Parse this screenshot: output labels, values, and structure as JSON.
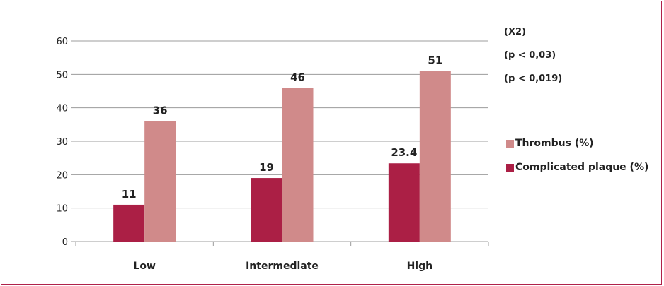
{
  "chart_data": {
    "type": "bar",
    "categories": [
      "Low",
      "Intermediate",
      "High"
    ],
    "series": [
      {
        "name": "Complicated plaque (%)",
        "values": [
          11,
          19,
          23.4
        ],
        "color": "#ab1f45"
      },
      {
        "name": "Thrombus (%)",
        "values": [
          36,
          46,
          51
        ],
        "color": "#d08a8a"
      }
    ],
    "data_labels": [
      [
        "11",
        "19",
        "23.4"
      ],
      [
        "36",
        "46",
        "51"
      ]
    ],
    "ylim": [
      0,
      60
    ],
    "yticks": [
      0,
      10,
      20,
      30,
      40,
      50,
      60
    ],
    "grid": true,
    "legend_position": "right",
    "annotations": [
      "(X2)",
      "(p < 0,03)",
      "(p < 0,019)"
    ]
  },
  "colors": {
    "frame": "#b0214a",
    "grid": "#9c9c9c"
  }
}
